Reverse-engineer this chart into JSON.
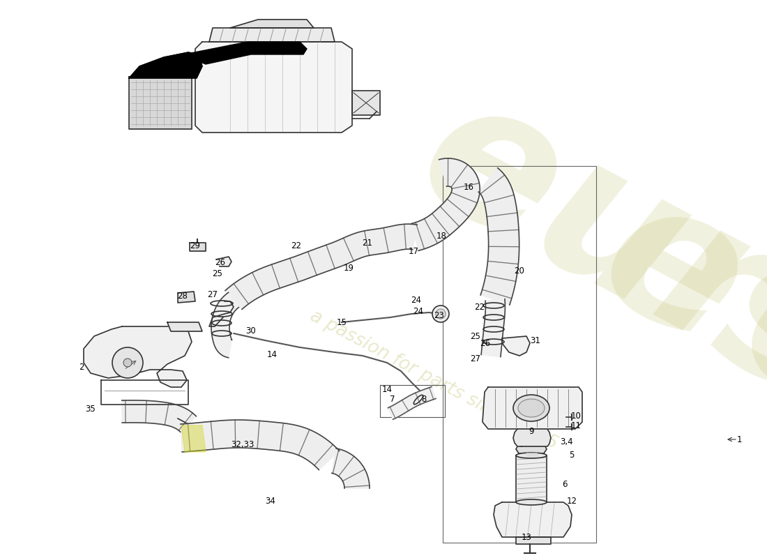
{
  "background_color": "#ffffff",
  "watermark_color": "#c8c880",
  "watermark_alpha": 0.25,
  "line_color": "#333333",
  "line_width": 1.2,
  "fill_light": "#f0f0f0",
  "fill_mid": "#e0e0e0",
  "fill_dark": "#c8c8c8",
  "label_fontsize": 8.5,
  "labels": [
    [
      "1",
      1060,
      630
    ],
    [
      "2",
      117,
      527
    ],
    [
      "3,4",
      812,
      633
    ],
    [
      "5",
      820,
      653
    ],
    [
      "6",
      810,
      695
    ],
    [
      "7",
      563,
      572
    ],
    [
      "8",
      608,
      572
    ],
    [
      "9",
      762,
      618
    ],
    [
      "10",
      826,
      597
    ],
    [
      "11",
      826,
      611
    ],
    [
      "12",
      820,
      718
    ],
    [
      "13",
      755,
      770
    ],
    [
      "14",
      390,
      508
    ],
    [
      "14",
      555,
      558
    ],
    [
      "15",
      490,
      462
    ],
    [
      "16",
      672,
      268
    ],
    [
      "17",
      593,
      360
    ],
    [
      "18",
      633,
      338
    ],
    [
      "19",
      500,
      385
    ],
    [
      "20",
      745,
      388
    ],
    [
      "21",
      527,
      348
    ],
    [
      "22",
      425,
      352
    ],
    [
      "22",
      688,
      440
    ],
    [
      "23",
      630,
      453
    ],
    [
      "24",
      597,
      430
    ],
    [
      "24",
      600,
      447
    ],
    [
      "25",
      312,
      392
    ],
    [
      "25",
      682,
      483
    ],
    [
      "26",
      316,
      377
    ],
    [
      "26",
      696,
      492
    ],
    [
      "27",
      305,
      422
    ],
    [
      "27",
      682,
      515
    ],
    [
      "28",
      262,
      425
    ],
    [
      "29",
      280,
      352
    ],
    [
      "30",
      360,
      475
    ],
    [
      "31",
      768,
      488
    ],
    [
      "32,33",
      348,
      638
    ],
    [
      "34",
      388,
      718
    ],
    [
      "35",
      130,
      587
    ]
  ]
}
